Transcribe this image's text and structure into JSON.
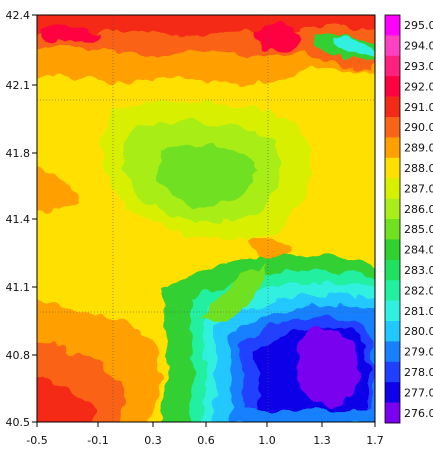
{
  "figure": {
    "type": "filled-contour-map",
    "x_ticks": [
      "-0.5",
      "-0.1",
      "0.3",
      "0.6",
      "1.0",
      "1.3",
      "1.7"
    ],
    "y_ticks": [
      "42.4",
      "42.1",
      "41.8",
      "41.4",
      "41.1",
      "40.8",
      "40.5"
    ],
    "x_range": [
      -0.5,
      1.7
    ],
    "y_range": [
      40.5,
      42.4
    ],
    "colorbar": {
      "labels": [
        "295.0",
        "294.0",
        "293.0",
        "292.0",
        "291.0",
        "290.0",
        "289.0",
        "288.0",
        "287.0",
        "286.0",
        "285.0",
        "284.0",
        "283.0",
        "282.0",
        "281.0",
        "280.0",
        "279.0",
        "278.0",
        "277.0",
        "276.0"
      ],
      "colors": [
        "#ff00ff",
        "#ff40c0",
        "#ff2080",
        "#ff0040",
        "#f42a18",
        "#fa6418",
        "#ffa000",
        "#ffe000",
        "#d8f000",
        "#a8ee18",
        "#70e020",
        "#30d030",
        "#20e060",
        "#20f0a0",
        "#30f0e0",
        "#20c8ff",
        "#1880ff",
        "#2040ff",
        "#1000e8",
        "#7a00f0"
      ]
    },
    "grid": "dotted",
    "regions_described": {
      "top_band": "red/orange high values",
      "center": "green/yellow mid values",
      "bottom_right": "blue/purple low values",
      "bottom_left": "orange/red"
    }
  }
}
